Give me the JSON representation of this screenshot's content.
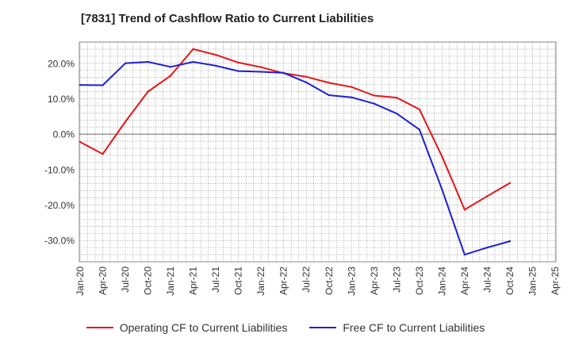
{
  "chart_data": {
    "type": "line",
    "title": "[7831]  Trend of Cashflow Ratio to Current Liabilities",
    "xlabel": "",
    "ylabel": "",
    "ylim": [
      -36,
      26
    ],
    "y_ticks": [
      20,
      10,
      0,
      -10,
      -20,
      -30
    ],
    "y_tick_labels": [
      "20.0%",
      "10.0%",
      "0.0%",
      "-10.0%",
      "-20.0%",
      "-30.0%"
    ],
    "x_tick_labels": [
      "Jan-20",
      "Apr-20",
      "Jul-20",
      "Oct-20",
      "Jan-21",
      "Apr-21",
      "Jul-21",
      "Oct-21",
      "Jan-22",
      "Apr-22",
      "Jul-22",
      "Oct-22",
      "Jan-23",
      "Apr-23",
      "Jul-23",
      "Oct-23",
      "Jan-24",
      "Apr-24",
      "Jul-24",
      "Oct-24",
      "Jan-25",
      "Apr-25"
    ],
    "grid": true,
    "legend_position": "bottom",
    "series": [
      {
        "name": "Operating CF to Current Liabilities",
        "color": "#e8141a",
        "x": [
          "Jan-20",
          "Apr-20",
          "Jul-20",
          "Oct-20",
          "Jan-21",
          "Apr-21",
          "Jul-21",
          "Oct-21",
          "Jan-22",
          "Apr-22",
          "Jul-22",
          "Oct-22",
          "Jan-23",
          "Apr-23",
          "Jul-23",
          "Oct-23",
          "Jan-24",
          "Apr-24",
          "Jul-24",
          "Oct-24"
        ],
        "values": [
          -2.2,
          -5.6,
          3.5,
          12.0,
          16.5,
          24.0,
          22.4,
          20.2,
          18.9,
          17.2,
          16.2,
          14.5,
          13.3,
          10.9,
          10.3,
          7.0,
          -6.3,
          -21.3,
          -17.5,
          -13.8
        ]
      },
      {
        "name": "Free CF to Current Liabilities",
        "color": "#1f1fd8",
        "x": [
          "Jan-20",
          "Apr-20",
          "Jul-20",
          "Oct-20",
          "Jan-21",
          "Apr-21",
          "Jul-21",
          "Oct-21",
          "Jan-22",
          "Apr-22",
          "Jul-22",
          "Oct-22",
          "Jan-23",
          "Apr-23",
          "Jul-23",
          "Oct-23",
          "Jan-24",
          "Apr-24",
          "Jul-24",
          "Oct-24"
        ],
        "values": [
          13.9,
          13.8,
          20.0,
          20.4,
          19.0,
          20.4,
          19.3,
          17.8,
          17.6,
          17.3,
          14.6,
          11.0,
          10.4,
          8.6,
          5.8,
          1.3,
          -15.6,
          -34.0,
          -32.0,
          -30.2
        ]
      }
    ]
  }
}
